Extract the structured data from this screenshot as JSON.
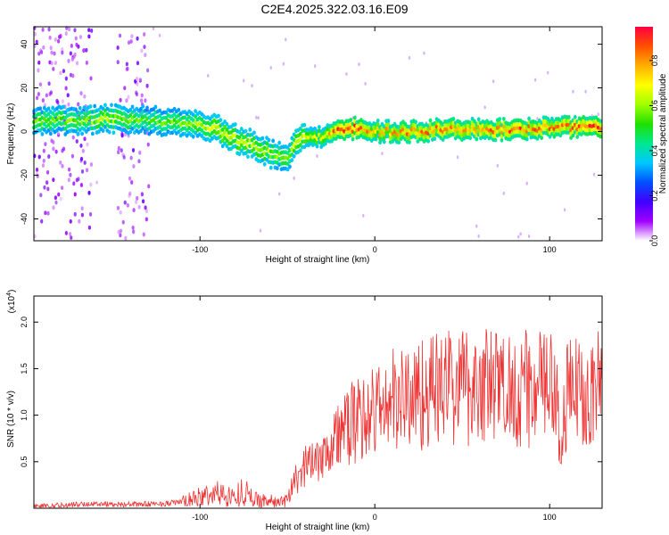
{
  "title": "C2E4.2025.322.03.16.E09",
  "chart_data": [
    {
      "type": "heatmap",
      "title": "C2E4.2025.322.03.16.E09",
      "xlabel": "Height of straight line (km)",
      "ylabel": "Frequency (Hz)",
      "xlim": [
        -195,
        130
      ],
      "ylim": [
        -50,
        48
      ],
      "x_ticks": [
        -100,
        0,
        100
      ],
      "x_tick_labels": [
        "-100",
        "0",
        "100"
      ],
      "y_ticks": [
        -40,
        -20,
        0,
        20,
        40
      ],
      "y_tick_labels": [
        "-40",
        "-20",
        "0",
        "20",
        "40"
      ],
      "colorbar": {
        "label": "Normalized spectral amplitude",
        "range": [
          0.0,
          0.95
        ],
        "ticks": [
          0.0,
          0.2,
          0.4,
          0.6,
          0.8
        ],
        "tick_labels": [
          "0.0",
          "0.2",
          "0.4",
          "0.6",
          "0.8"
        ],
        "colormap": [
          "#ffffff",
          "#a000ff",
          "#4000ff",
          "#0050ff",
          "#00c8ff",
          "#00e890",
          "#20e000",
          "#a0ff00",
          "#ffff00",
          "#ffb000",
          "#ff5000",
          "#ff0040"
        ]
      },
      "ridge": {
        "x": [
          -170,
          -150,
          -130,
          -110,
          -90,
          -80,
          -70,
          -60,
          -50,
          -45,
          -40,
          -30,
          -20,
          -10,
          0,
          20,
          40,
          60,
          80,
          100,
          128
        ],
        "frequency": [
          5,
          6,
          5,
          4,
          1,
          -3,
          -6,
          -10,
          -12,
          -5,
          -3,
          -2,
          0,
          2,
          0,
          0,
          1,
          1,
          1,
          2,
          2
        ],
        "amplitude": [
          0.5,
          0.55,
          0.45,
          0.5,
          0.6,
          0.6,
          0.6,
          0.55,
          0.5,
          0.6,
          0.6,
          0.6,
          0.9,
          0.9,
          0.7,
          0.8,
          0.8,
          0.8,
          0.85,
          0.8,
          0.9
        ]
      },
      "noise_bands": [
        [
          -195,
          -162
        ],
        [
          -148,
          -130
        ]
      ]
    },
    {
      "type": "line",
      "xlabel": "Height of straight line (km)",
      "ylabel": "SNR (10 * v/v)",
      "y_scale_label": "(x10",
      "y_scale_exponent": "4",
      "y_scale_suffix": ")",
      "xlim": [
        -195,
        130
      ],
      "ylim": [
        0,
        2.28
      ],
      "x_ticks": [
        -100,
        0,
        100
      ],
      "x_tick_labels": [
        "-100",
        "0",
        "100"
      ],
      "y_ticks": [
        0.5,
        1.0,
        1.5,
        2.0
      ],
      "y_tick_labels": [
        "0.5",
        "1.0",
        "1.5",
        "2.0"
      ],
      "color": "#ee3333",
      "series": [
        {
          "name": "SNR",
          "x": [
            -195,
            -180,
            -160,
            -140,
            -120,
            -110,
            -100,
            -90,
            -80,
            -75,
            -70,
            -60,
            -55,
            -50,
            -45,
            -40,
            -35,
            -30,
            -25,
            -20,
            -10,
            0,
            10,
            20,
            30,
            40,
            50,
            60,
            70,
            80,
            90,
            100,
            104,
            106,
            110,
            120,
            130
          ],
          "values": [
            0.02,
            0.03,
            0.05,
            0.04,
            0.05,
            0.07,
            0.12,
            0.16,
            0.12,
            0.2,
            0.1,
            0.08,
            0.06,
            0.1,
            0.25,
            0.45,
            0.55,
            0.6,
            0.7,
            0.8,
            0.95,
            1.05,
            1.15,
            1.2,
            1.25,
            1.3,
            1.32,
            1.33,
            1.3,
            1.3,
            1.28,
            1.3,
            1.1,
            0.6,
            1.2,
            1.3,
            1.28
          ]
        }
      ]
    }
  ]
}
